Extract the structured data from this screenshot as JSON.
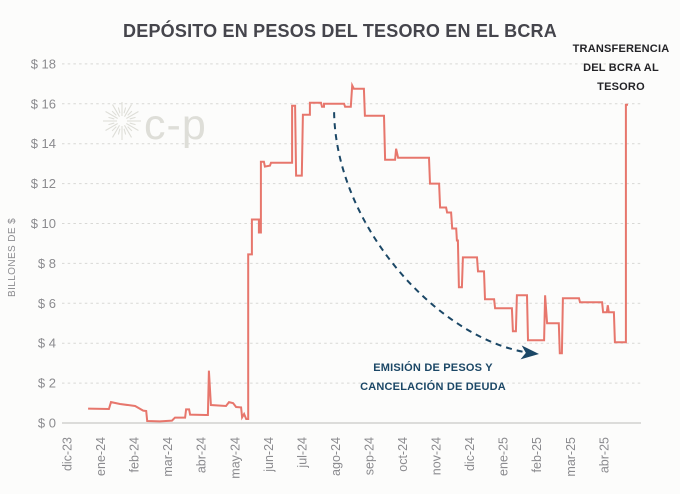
{
  "page": {
    "background": "#FCFCFB"
  },
  "watermark": {
    "text": "c-p",
    "icon": "sunburst-icon"
  },
  "chart_data": {
    "type": "line",
    "title": "DEPÓSITO EN PESOS DEL TESORO EN EL BCRA",
    "ylabel": "BILLONES DE $",
    "xlabel": "",
    "ylim": [
      0,
      18
    ],
    "grid": "horizontal-dashed",
    "legend": "none",
    "y_ticks": [
      {
        "label": "$ 0",
        "value": 0
      },
      {
        "label": "$ 2",
        "value": 2
      },
      {
        "label": "$ 4",
        "value": 4
      },
      {
        "label": "$ 6",
        "value": 6
      },
      {
        "label": "$ 8",
        "value": 8
      },
      {
        "label": "$ 10",
        "value": 10
      },
      {
        "label": "$ 12",
        "value": 12
      },
      {
        "label": "$ 14",
        "value": 14
      },
      {
        "label": "$ 16",
        "value": 16
      },
      {
        "label": "$ 18",
        "value": 18
      }
    ],
    "x_ticks": [
      "dic-23",
      "ene-24",
      "feb-24",
      "mar-24",
      "abr-24",
      "may-24",
      "jun-24",
      "jul-24",
      "ago-24",
      "sep-24",
      "oct-24",
      "nov-24",
      "dic-24",
      "ene-25",
      "feb-25",
      "mar-25",
      "abr-25"
    ],
    "series": [
      {
        "name": "Depósito en pesos del Tesoro en el BCRA (billones de $)",
        "x_unit": "months-since-dic-23",
        "points": [
          [
            0.63,
            0.72
          ],
          [
            1.25,
            0.7
          ],
          [
            1.31,
            1.05
          ],
          [
            1.58,
            0.95
          ],
          [
            2.03,
            0.85
          ],
          [
            2.27,
            0.62
          ],
          [
            2.36,
            0.6
          ],
          [
            2.39,
            0.1
          ],
          [
            2.77,
            0.08
          ],
          [
            3.13,
            0.12
          ],
          [
            3.22,
            0.27
          ],
          [
            3.52,
            0.27
          ],
          [
            3.55,
            0.68
          ],
          [
            3.64,
            0.68
          ],
          [
            3.67,
            0.42
          ],
          [
            4.14,
            0.4
          ],
          [
            4.2,
            0.4
          ],
          [
            4.23,
            2.62
          ],
          [
            4.29,
            0.9
          ],
          [
            4.74,
            0.85
          ],
          [
            4.83,
            1.05
          ],
          [
            4.95,
            1.0
          ],
          [
            5.04,
            0.8
          ],
          [
            5.19,
            0.78
          ],
          [
            5.22,
            0.28
          ],
          [
            5.28,
            0.45
          ],
          [
            5.34,
            0.2
          ],
          [
            5.4,
            0.2
          ],
          [
            5.4,
            8.45
          ],
          [
            5.51,
            8.45
          ],
          [
            5.51,
            10.2
          ],
          [
            5.72,
            10.2
          ],
          [
            5.72,
            9.55
          ],
          [
            5.78,
            9.55
          ],
          [
            5.78,
            13.1
          ],
          [
            5.87,
            13.1
          ],
          [
            5.9,
            12.85
          ],
          [
            6.05,
            12.9
          ],
          [
            6.08,
            13.05
          ],
          [
            6.71,
            13.05
          ],
          [
            6.71,
            15.9
          ],
          [
            6.8,
            15.9
          ],
          [
            6.83,
            12.4
          ],
          [
            7.0,
            12.4
          ],
          [
            7.03,
            15.45
          ],
          [
            7.24,
            15.45
          ],
          [
            7.24,
            16.05
          ],
          [
            7.57,
            16.05
          ],
          [
            7.6,
            15.85
          ],
          [
            7.66,
            15.85
          ],
          [
            7.66,
            16.0
          ],
          [
            8.26,
            16.0
          ],
          [
            8.29,
            15.85
          ],
          [
            8.46,
            15.85
          ],
          [
            8.5,
            16.92
          ],
          [
            8.55,
            16.75
          ],
          [
            8.85,
            16.75
          ],
          [
            8.88,
            15.4
          ],
          [
            9.45,
            15.4
          ],
          [
            9.48,
            13.2
          ],
          [
            9.78,
            13.2
          ],
          [
            9.81,
            13.75
          ],
          [
            9.87,
            13.3
          ],
          [
            10.79,
            13.3
          ],
          [
            10.82,
            12.0
          ],
          [
            11.09,
            12.0
          ],
          [
            11.12,
            10.8
          ],
          [
            11.3,
            10.8
          ],
          [
            11.33,
            10.55
          ],
          [
            11.45,
            10.55
          ],
          [
            11.48,
            9.75
          ],
          [
            11.6,
            9.75
          ],
          [
            11.62,
            9.15
          ],
          [
            11.65,
            9.15
          ],
          [
            11.68,
            6.8
          ],
          [
            11.77,
            6.8
          ],
          [
            11.8,
            8.3
          ],
          [
            12.22,
            8.3
          ],
          [
            12.25,
            7.6
          ],
          [
            12.43,
            7.6
          ],
          [
            12.46,
            6.2
          ],
          [
            12.73,
            6.2
          ],
          [
            12.76,
            5.75
          ],
          [
            13.26,
            5.75
          ],
          [
            13.29,
            4.6
          ],
          [
            13.38,
            4.6
          ],
          [
            13.41,
            6.4
          ],
          [
            13.71,
            6.4
          ],
          [
            13.74,
            4.15
          ],
          [
            14.22,
            4.15
          ],
          [
            14.25,
            6.4
          ],
          [
            14.31,
            5.0
          ],
          [
            14.66,
            5.0
          ],
          [
            14.69,
            3.5
          ],
          [
            14.75,
            3.5
          ],
          [
            14.78,
            6.25
          ],
          [
            15.26,
            6.25
          ],
          [
            15.29,
            6.05
          ],
          [
            15.95,
            6.05
          ],
          [
            15.98,
            5.55
          ],
          [
            16.09,
            5.55
          ],
          [
            16.12,
            5.9
          ],
          [
            16.15,
            5.55
          ],
          [
            16.3,
            5.55
          ],
          [
            16.33,
            4.05
          ],
          [
            16.66,
            4.05
          ],
          [
            16.66,
            15.95
          ],
          [
            16.72,
            15.95
          ]
        ]
      }
    ],
    "annotations": {
      "transfer": {
        "lines": [
          "TRANSFERENCIA",
          "DEL BCRA AL",
          "TESORO"
        ]
      },
      "emision": {
        "lines": [
          "EMISIÓN DE PESOS Y",
          "CANCELACIÓN DE DEUDA"
        ]
      },
      "arrow": {
        "style": "dashed-curve",
        "start": [
          7.96,
          15.58
        ],
        "c1": [
          8.02,
          9.65
        ],
        "c2": [
          11.27,
          3.87
        ],
        "end": [
          14.01,
          3.47
        ]
      }
    },
    "colors": {
      "line": "#E7766C",
      "annotation_blue": "#1B4766",
      "grid": "#D8D8D5",
      "zero_axis": "#C8C8C6",
      "axis_text": "#8B8B8F",
      "title_text": "#45454C",
      "transfer_text": "#232327",
      "watermark": "#DEDED8"
    }
  }
}
